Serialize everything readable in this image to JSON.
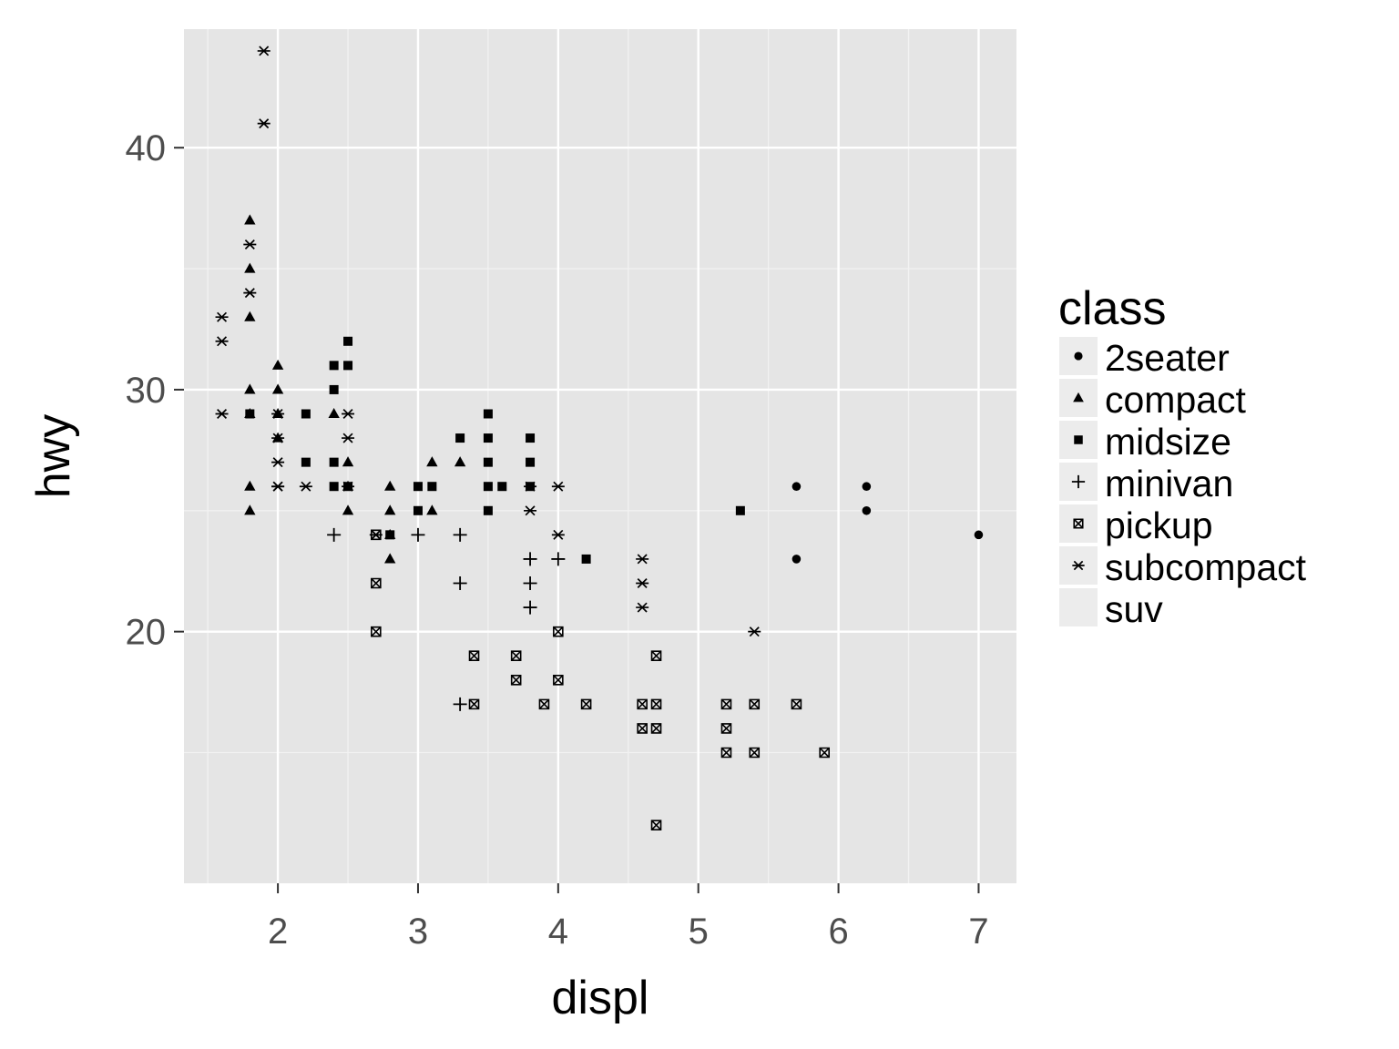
{
  "chart_data": {
    "type": "scatter",
    "xlabel": "displ",
    "ylabel": "hwy",
    "xlim": [
      1.33,
      7.27
    ],
    "ylim": [
      9.6,
      44.9
    ],
    "x_ticks": [
      2,
      3,
      4,
      5,
      6,
      7
    ],
    "y_ticks": [
      20,
      30,
      40
    ],
    "grid": true,
    "legend": {
      "title": "class",
      "position": "right",
      "entries": [
        "2seater",
        "compact",
        "midsize",
        "minivan",
        "pickup",
        "subcompact",
        "suv"
      ]
    },
    "colors": {
      "panel": "#e5e5e5",
      "grid_major": "#ffffff",
      "grid_minor": "#f2f2f2",
      "points": "#000000",
      "legend_key": "#ececec"
    },
    "series": [
      {
        "name": "2seater",
        "shape": "circle",
        "x": [
          5.7,
          5.7,
          6.2,
          6.2,
          7.0
        ],
        "y": [
          26,
          23,
          26,
          25,
          24
        ]
      },
      {
        "name": "compact",
        "shape": "triangle",
        "x": [
          1.8,
          1.8,
          1.8,
          1.8,
          1.8,
          1.8,
          1.8,
          2.0,
          2.0,
          2.0,
          2.0,
          2.4,
          2.5,
          2.5,
          2.5,
          2.8,
          2.8,
          2.8,
          2.8,
          3.1,
          3.1,
          3.3
        ],
        "y": [
          37,
          35,
          33,
          30,
          29,
          26,
          25,
          31,
          30,
          29,
          28,
          29,
          27,
          26,
          25,
          26,
          25,
          24,
          23,
          27,
          25,
          27
        ]
      },
      {
        "name": "midsize",
        "shape": "square",
        "x": [
          1.8,
          2.2,
          2.2,
          2.4,
          2.4,
          2.4,
          2.4,
          2.5,
          2.5,
          2.5,
          2.8,
          3.0,
          3.0,
          3.1,
          3.3,
          3.5,
          3.5,
          3.5,
          3.5,
          3.5,
          3.6,
          3.8,
          3.8,
          3.8,
          4.2,
          5.3
        ],
        "y": [
          29,
          29,
          27,
          31,
          30,
          27,
          26,
          32,
          31,
          26,
          24,
          26,
          25,
          26,
          28,
          29,
          28,
          27,
          26,
          25,
          26,
          28,
          27,
          26,
          23,
          25
        ]
      },
      {
        "name": "minivan",
        "shape": "plus",
        "x": [
          2.4,
          3.0,
          3.3,
          3.3,
          3.3,
          3.8,
          3.8,
          3.8,
          4.0
        ],
        "y": [
          24,
          24,
          24,
          22,
          17,
          23,
          22,
          21,
          23
        ]
      },
      {
        "name": "pickup",
        "shape": "square-cross",
        "x": [
          2.7,
          2.7,
          2.7,
          3.4,
          3.4,
          3.7,
          3.7,
          3.9,
          4.0,
          4.0,
          4.2,
          4.6,
          4.6,
          4.7,
          4.7,
          4.7,
          4.7,
          5.2,
          5.2,
          5.2,
          5.4,
          5.4,
          5.7,
          5.9
        ],
        "y": [
          24,
          22,
          20,
          19,
          17,
          19,
          18,
          17,
          20,
          18,
          17,
          17,
          16,
          19,
          17,
          16,
          12,
          17,
          16,
          15,
          17,
          15,
          17,
          15
        ]
      },
      {
        "name": "subcompact",
        "shape": "asterisk",
        "x": [
          1.6,
          1.6,
          1.6,
          1.8,
          1.8,
          1.9,
          1.9,
          2.0,
          2.0,
          2.0,
          2.0,
          2.0,
          2.2,
          2.5,
          2.5,
          2.5,
          2.7,
          3.8,
          3.8,
          4.0,
          4.0,
          4.6,
          4.6,
          4.6,
          5.4
        ],
        "y": [
          33,
          32,
          29,
          36,
          34,
          44,
          41,
          29,
          28,
          27,
          26,
          26,
          26,
          29,
          28,
          26,
          24,
          26,
          25,
          26,
          24,
          23,
          22,
          21,
          20
        ]
      },
      {
        "name": "suv",
        "shape": "none",
        "x": [],
        "y": []
      }
    ]
  }
}
